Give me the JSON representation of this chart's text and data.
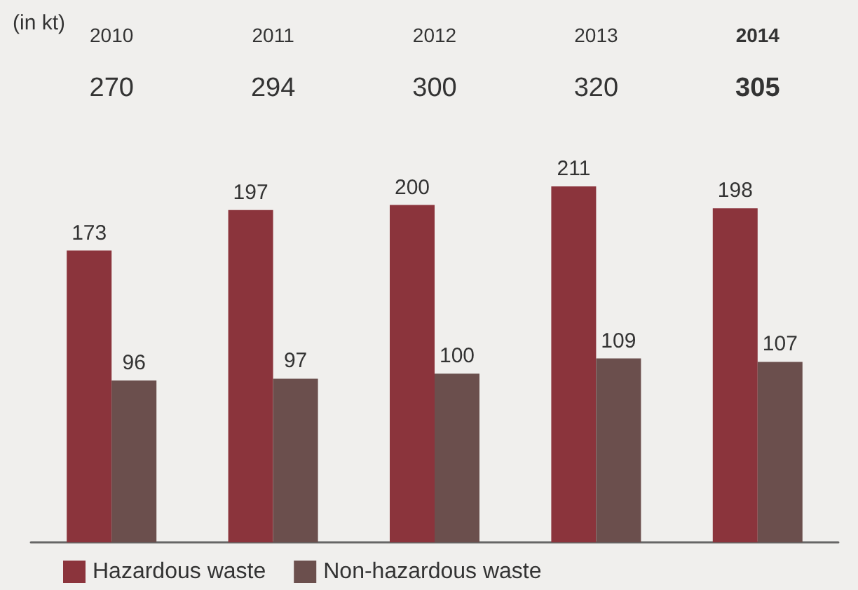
{
  "chart_data": {
    "type": "bar",
    "ylabel": "(in kt)",
    "categories": [
      "2010",
      "2011",
      "2012",
      "2013",
      "2014"
    ],
    "annotations": [
      "270",
      "294",
      "300",
      "320",
      "305"
    ],
    "series": [
      {
        "name": "Hazardous waste",
        "color": "#8b343c",
        "values": [
          173,
          197,
          200,
          211,
          198
        ]
      },
      {
        "name": "Non-hazardous waste",
        "color": "#6b4f4d",
        "values": [
          96,
          97,
          100,
          109,
          107
        ]
      }
    ],
    "data_labels": true,
    "legend": "bottom left"
  }
}
